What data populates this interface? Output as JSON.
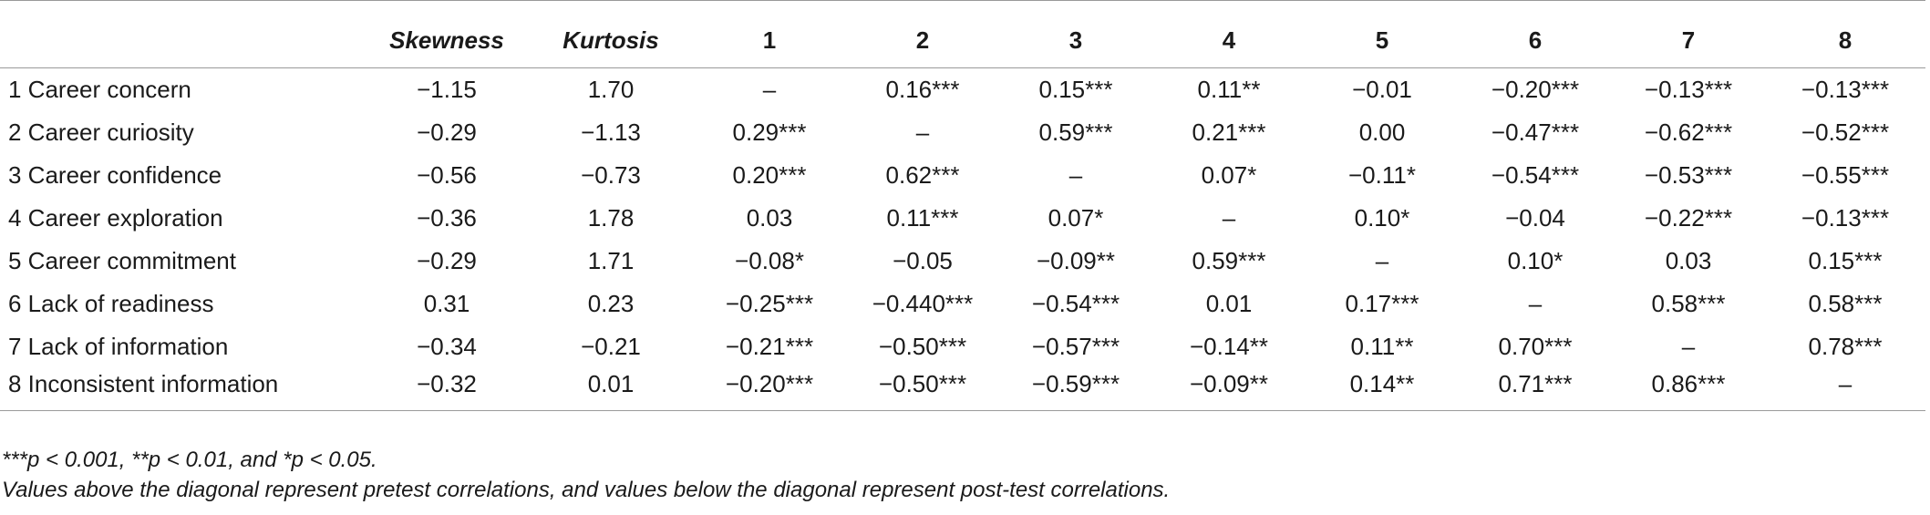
{
  "columns": [
    "",
    "Skewness",
    "Kurtosis",
    "1",
    "2",
    "3",
    "4",
    "5",
    "6",
    "7",
    "8"
  ],
  "rows": [
    [
      "1 Career concern",
      "−1.15",
      "1.70",
      "–",
      "0.16***",
      "0.15***",
      "0.11**",
      "−0.01",
      "−0.20***",
      "−0.13***",
      "−0.13***"
    ],
    [
      "2 Career curiosity",
      "−0.29",
      "−1.13",
      "0.29***",
      "–",
      "0.59***",
      "0.21***",
      "0.00",
      "−0.47***",
      "−0.62***",
      "−0.52***"
    ],
    [
      "3 Career confidence",
      "−0.56",
      "−0.73",
      "0.20***",
      "0.62***",
      "–",
      "0.07*",
      "−0.11*",
      "−0.54***",
      "−0.53***",
      "−0.55***"
    ],
    [
      "4 Career exploration",
      "−0.36",
      "1.78",
      "0.03",
      "0.11***",
      "0.07*",
      "–",
      "0.10*",
      "−0.04",
      "−0.22***",
      "−0.13***"
    ],
    [
      "5 Career commitment",
      "−0.29",
      "1.71",
      "−0.08*",
      "−0.05",
      "−0.09**",
      "0.59***",
      "–",
      "0.10*",
      "0.03",
      "0.15***"
    ],
    [
      "6 Lack of readiness",
      "0.31",
      "0.23",
      "−0.25***",
      "−0.440***",
      "−0.54***",
      "0.01",
      "0.17***",
      "–",
      "0.58***",
      "0.58***"
    ],
    [
      "7 Lack of information",
      "−0.34",
      "−0.21",
      "−0.21***",
      "−0.50***",
      "−0.57***",
      "−0.14**",
      "0.11**",
      "0.70***",
      "–",
      "0.78***"
    ],
    [
      "8 Inconsistent information",
      "−0.32",
      "0.01",
      "−0.20***",
      "−0.50***",
      "−0.59***",
      "−0.09**",
      "0.14**",
      "0.71***",
      "0.86***",
      "–"
    ]
  ],
  "notes": {
    "significance": "***p < 0.001, **p < 0.01, and *p < 0.05.",
    "diagonal": "Values above the diagonal represent pretest correlations, and values below the diagonal represent post-test correlations."
  }
}
